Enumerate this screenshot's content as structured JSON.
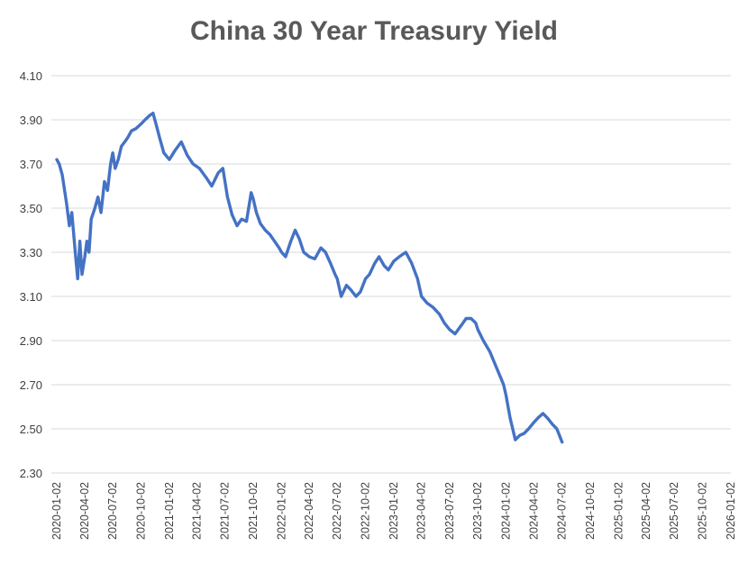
{
  "chart_data": {
    "type": "line",
    "title": "China 30 Year Treasury Yield",
    "xlabel": "",
    "ylabel": "",
    "ylim": [
      2.3,
      4.1
    ],
    "y_ticks": [
      "2.30",
      "2.50",
      "2.70",
      "2.90",
      "3.10",
      "3.30",
      "3.50",
      "3.70",
      "3.90",
      "4.10"
    ],
    "x_ticks": [
      "2020-01-02",
      "2020-04-02",
      "2020-07-02",
      "2020-10-02",
      "2021-01-02",
      "2021-04-02",
      "2021-07-02",
      "2021-10-02",
      "2022-01-02",
      "2022-04-02",
      "2022-07-02",
      "2022-10-02",
      "2023-01-02",
      "2023-04-02",
      "2023-07-02",
      "2023-10-02",
      "2024-01-02",
      "2024-04-02",
      "2024-07-02",
      "2024-10-02",
      "2025-01-02",
      "2025-04-02",
      "2025-07-02",
      "2025-10-02",
      "2026-01-02"
    ],
    "grid": true,
    "line_color": "#4472C4",
    "series": [
      {
        "x": [
          "2020-01-02",
          "2020-01-10",
          "2020-01-20",
          "2020-02-03",
          "2020-02-12",
          "2020-02-20",
          "2020-03-02",
          "2020-03-10",
          "2020-03-17",
          "2020-03-24",
          "2020-04-02",
          "2020-04-09",
          "2020-04-16",
          "2020-04-23",
          "2020-05-05",
          "2020-05-15",
          "2020-05-25",
          "2020-06-05",
          "2020-06-15",
          "2020-06-25",
          "2020-07-02",
          "2020-07-10",
          "2020-07-20",
          "2020-07-30",
          "2020-08-10",
          "2020-08-20",
          "2020-09-01",
          "2020-09-15",
          "2020-10-01",
          "2020-10-15",
          "2020-10-30",
          "2020-11-10",
          "2020-11-20",
          "2020-12-01",
          "2020-12-15",
          "2021-01-02",
          "2021-01-20",
          "2021-02-10",
          "2021-03-01",
          "2021-03-20",
          "2021-04-10",
          "2021-05-01",
          "2021-05-20",
          "2021-06-10",
          "2021-06-25",
          "2021-07-10",
          "2021-07-25",
          "2021-08-10",
          "2021-08-25",
          "2021-09-10",
          "2021-09-25",
          "2021-10-02",
          "2021-10-12",
          "2021-10-25",
          "2021-11-10",
          "2021-11-25",
          "2021-12-10",
          "2021-12-25",
          "2022-01-02",
          "2022-01-15",
          "2022-02-01",
          "2022-02-15",
          "2022-03-01",
          "2022-03-15",
          "2022-04-02",
          "2022-04-20",
          "2022-05-10",
          "2022-05-25",
          "2022-06-10",
          "2022-06-25",
          "2022-07-02",
          "2022-07-15",
          "2022-08-01",
          "2022-08-15",
          "2022-09-01",
          "2022-09-15",
          "2022-10-02",
          "2022-10-15",
          "2022-11-01",
          "2022-11-15",
          "2022-12-01",
          "2022-12-15",
          "2023-01-02",
          "2023-01-20",
          "2023-02-10",
          "2023-03-01",
          "2023-03-20",
          "2023-04-02",
          "2023-04-20",
          "2023-05-10",
          "2023-05-30",
          "2023-06-15",
          "2023-07-02",
          "2023-07-20",
          "2023-08-10",
          "2023-08-25",
          "2023-09-10",
          "2023-09-25",
          "2023-10-02",
          "2023-10-20",
          "2023-11-10",
          "2023-11-25",
          "2023-12-10",
          "2023-12-25",
          "2024-01-02",
          "2024-01-15",
          "2024-02-01",
          "2024-02-15",
          "2024-03-01",
          "2024-03-15",
          "2024-04-02",
          "2024-04-15",
          "2024-05-01",
          "2024-05-15",
          "2024-06-01",
          "2024-06-15",
          "2024-07-02"
        ],
        "y": [
          3.72,
          3.7,
          3.65,
          3.52,
          3.42,
          3.48,
          3.3,
          3.18,
          3.35,
          3.2,
          3.28,
          3.35,
          3.3,
          3.45,
          3.5,
          3.55,
          3.48,
          3.62,
          3.58,
          3.7,
          3.75,
          3.68,
          3.72,
          3.78,
          3.8,
          3.82,
          3.85,
          3.86,
          3.88,
          3.9,
          3.92,
          3.93,
          3.88,
          3.82,
          3.75,
          3.72,
          3.76,
          3.8,
          3.74,
          3.7,
          3.68,
          3.64,
          3.6,
          3.66,
          3.68,
          3.55,
          3.47,
          3.42,
          3.45,
          3.44,
          3.57,
          3.54,
          3.48,
          3.43,
          3.4,
          3.38,
          3.35,
          3.32,
          3.3,
          3.28,
          3.35,
          3.4,
          3.36,
          3.3,
          3.28,
          3.27,
          3.32,
          3.3,
          3.25,
          3.2,
          3.18,
          3.1,
          3.15,
          3.13,
          3.1,
          3.12,
          3.18,
          3.2,
          3.25,
          3.28,
          3.24,
          3.22,
          3.26,
          3.28,
          3.3,
          3.25,
          3.18,
          3.1,
          3.07,
          3.05,
          3.02,
          2.98,
          2.95,
          2.93,
          2.97,
          3.0,
          3.0,
          2.98,
          2.95,
          2.9,
          2.85,
          2.8,
          2.75,
          2.7,
          2.65,
          2.55,
          2.45,
          2.47,
          2.48,
          2.5,
          2.53,
          2.55,
          2.57,
          2.55,
          2.52,
          2.5,
          2.44
        ]
      }
    ]
  }
}
